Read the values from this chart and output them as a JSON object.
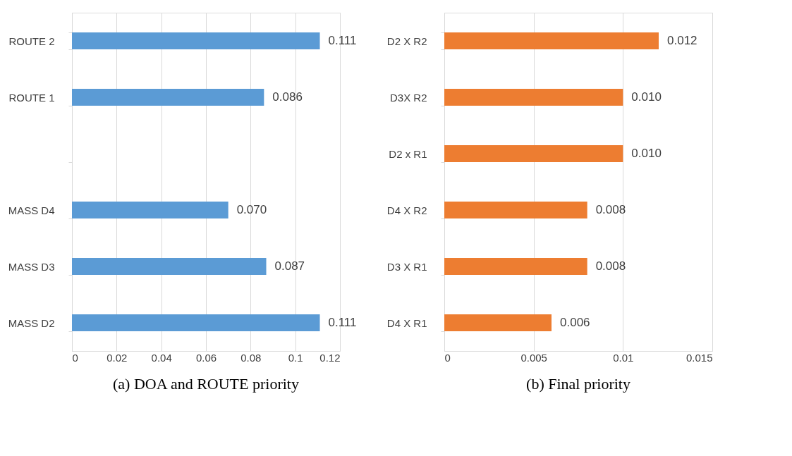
{
  "chart_data": [
    {
      "type": "bar",
      "orientation": "horizontal",
      "title": "(a) DOA and ROUTE priority",
      "categories": [
        "ROUTE 2",
        "ROUTE 1",
        null,
        "MASS D4",
        "MASS D3",
        "MASS D2"
      ],
      "values": [
        0.111,
        0.086,
        null,
        0.07,
        0.087,
        0.111
      ],
      "value_labels": [
        "0.111",
        "0.086",
        null,
        "0.070",
        "0.087",
        "0.111"
      ],
      "color": "#5b9bd5",
      "xlim": [
        0,
        0.12
      ],
      "xticks": [
        0,
        0.02,
        0.04,
        0.06,
        0.08,
        0.1,
        0.12
      ],
      "grid": "x"
    },
    {
      "type": "bar",
      "orientation": "horizontal",
      "title": "(b) Final priority",
      "categories": [
        "D2 X R2",
        "D3X R2",
        "D2 x R1",
        "D4 X R2",
        "D3 X R1",
        "D4 X R1"
      ],
      "values": [
        0.012,
        0.01,
        0.01,
        0.008,
        0.008,
        0.006
      ],
      "value_labels": [
        "0.012",
        "0.010",
        "0.010",
        "0.008",
        "0.008",
        "0.006"
      ],
      "color": "#ed7d31",
      "xlim": [
        0,
        0.015
      ],
      "xticks": [
        0,
        0.005,
        0.01,
        0.015
      ],
      "grid": "x"
    }
  ]
}
